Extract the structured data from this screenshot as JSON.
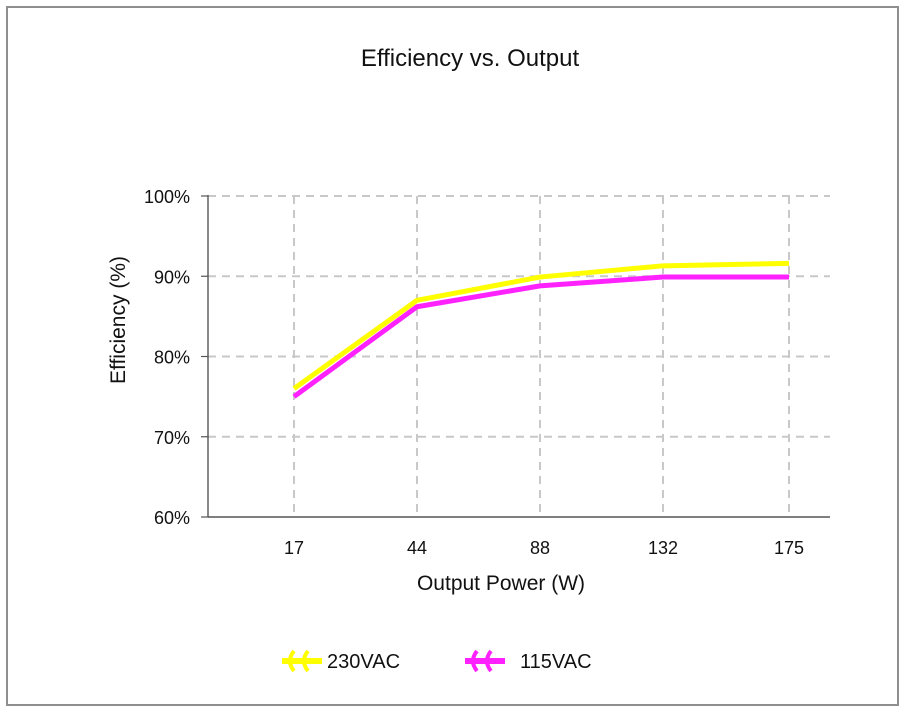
{
  "chart_data": {
    "type": "line",
    "title": "Efficiency vs. Output",
    "xlabel": "Output Power (W)",
    "ylabel": "Efficiency (%)",
    "categories": [
      "17",
      "44",
      "88",
      "132",
      "175"
    ],
    "y_tick_labels": [
      "60%",
      "70%",
      "80%",
      "90%",
      "100%"
    ],
    "ylim": [
      60,
      100
    ],
    "grid": true,
    "legend_position": "bottom",
    "series": [
      {
        "name": "230VAC",
        "color": "#ffff00",
        "values": [
          76.0,
          87.0,
          89.9,
          91.3,
          91.6
        ]
      },
      {
        "name": "115VAC",
        "color": "#ff22ff",
        "values": [
          75.0,
          86.2,
          88.8,
          89.9,
          89.9
        ]
      }
    ]
  }
}
